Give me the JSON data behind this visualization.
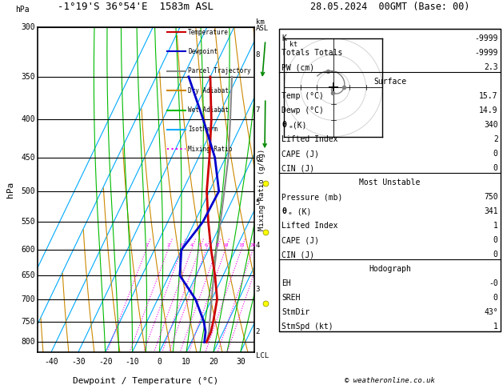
{
  "title_left": "-1°19'S 36°54'E  1583m ASL",
  "title_right": "28.05.2024  00GMT (Base: 00)",
  "xlabel": "Dewpoint / Temperature (°C)",
  "p_levels": [
    300,
    350,
    400,
    450,
    500,
    550,
    600,
    650,
    700,
    750,
    800
  ],
  "p_min": 300,
  "p_max": 825,
  "T_min": -45,
  "T_max": 35,
  "isotherm_color": "#00aaff",
  "dry_adiabat_color": "#cc8800",
  "wet_adiabat_color": "#00bb00",
  "mixing_ratio_color": "#ee00ee",
  "temp_color": "#cc0000",
  "dewp_color": "#0000cc",
  "parcel_color": "#888888",
  "legend_items": [
    {
      "label": "Temperature",
      "color": "#cc0000",
      "style": "-"
    },
    {
      "label": "Dewpoint",
      "color": "#0000cc",
      "style": "-"
    },
    {
      "label": "Parcel Trajectory",
      "color": "#888888",
      "style": "-"
    },
    {
      "label": "Dry Adiabat",
      "color": "#cc8800",
      "style": "-"
    },
    {
      "label": "Wet Adiabat",
      "color": "#00bb00",
      "style": "-"
    },
    {
      "label": "Isotherm",
      "color": "#00aaff",
      "style": "-"
    },
    {
      "label": "Mixing Ratio",
      "color": "#ee00ee",
      "style": ":"
    }
  ],
  "temp_profile_T": [
    15.7,
    15.5,
    14.5,
    12.0,
    7.0,
    1.0,
    -5.0,
    -11.0,
    -16.0,
    -22.0,
    -30.0
  ],
  "temp_profile_P": [
    800,
    775,
    750,
    700,
    650,
    600,
    550,
    500,
    450,
    400,
    350
  ],
  "dewp_profile_T": [
    14.9,
    13.5,
    11.0,
    4.0,
    -6.0,
    -10.0,
    -7.0,
    -6.5,
    -14.0,
    -25.0,
    -38.0
  ],
  "dewp_profile_P": [
    800,
    775,
    750,
    700,
    650,
    600,
    550,
    500,
    450,
    400,
    350
  ],
  "parcel_profile_T": [
    15.7,
    14.8,
    13.2,
    10.0,
    6.5,
    3.0,
    -0.5,
    -4.5,
    -9.0,
    -15.0,
    -22.0
  ],
  "parcel_profile_P": [
    800,
    775,
    750,
    700,
    650,
    600,
    550,
    500,
    450,
    400,
    350
  ],
  "mixing_ratio_values": [
    1,
    2,
    3,
    4,
    5,
    6,
    8,
    10,
    15,
    20,
    25
  ],
  "km_labels": [
    8,
    7,
    6,
    5,
    4,
    3,
    2
  ],
  "km_pressures": [
    327,
    388,
    452,
    518,
    592,
    678,
    775
  ],
  "info_K": "-9999",
  "info_TT": "-9999",
  "info_PW": "2.3",
  "surface_temp": "15.7",
  "surface_dewp": "14.9",
  "surface_theta_e": "340",
  "surface_li": "2",
  "surface_cape": "0",
  "surface_cin": "0",
  "mu_pressure": "750",
  "mu_theta_e": "341",
  "mu_li": "1",
  "mu_cape": "0",
  "mu_cin": "0",
  "hodo_eh": "-0",
  "hodo_sreh": "0",
  "hodo_stmdir": "43°",
  "hodo_stmspd": "1",
  "copyright": "© weatheronline.co.uk",
  "skew_factor": 0.72
}
